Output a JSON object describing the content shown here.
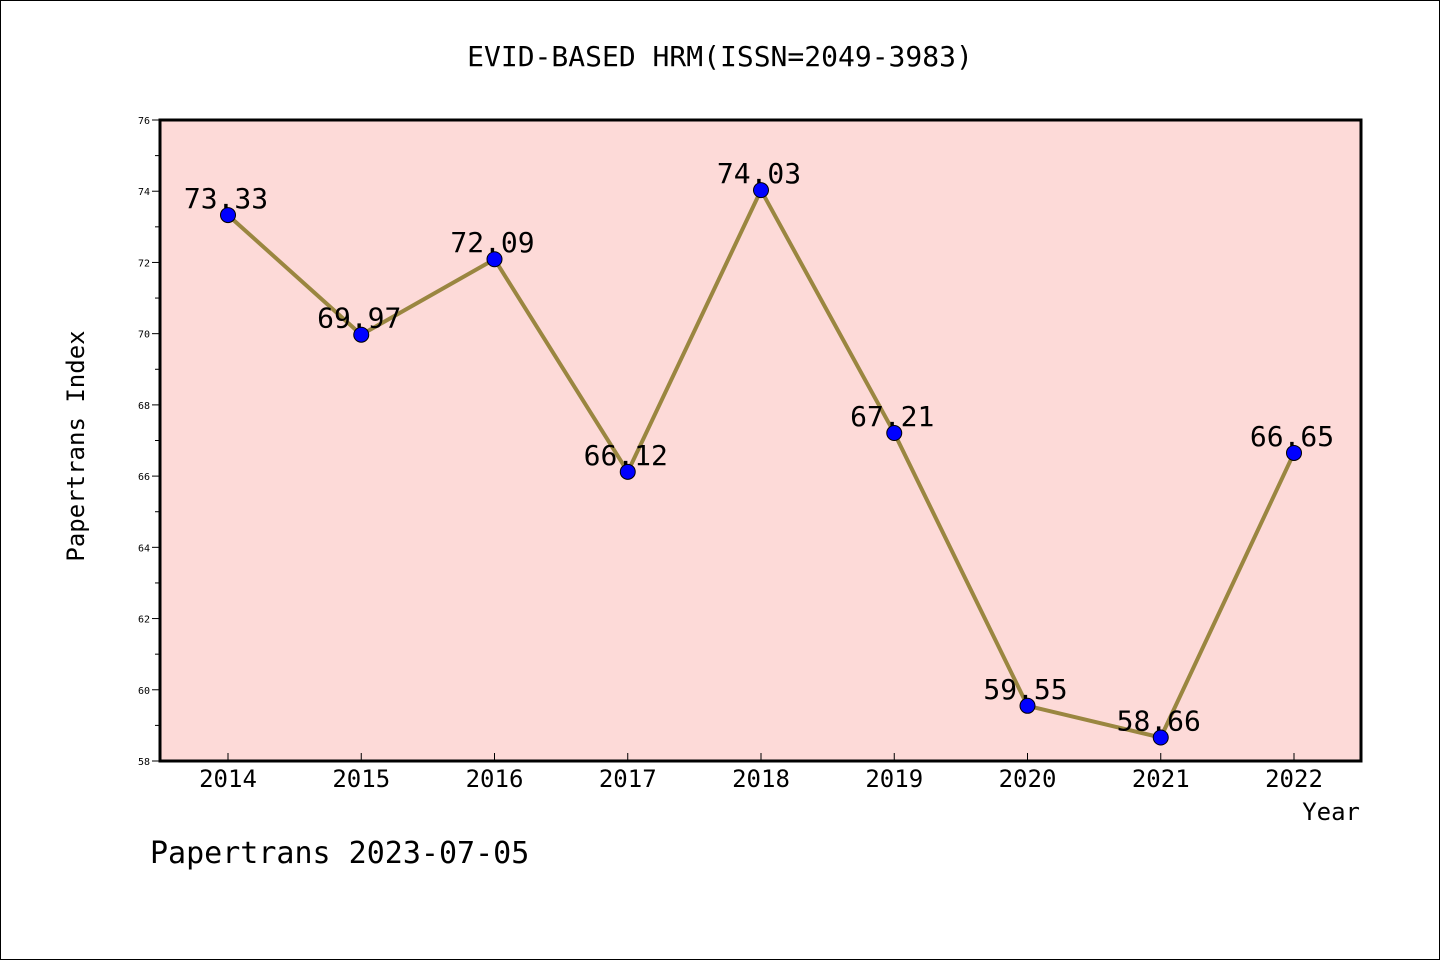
{
  "chart_data": {
    "type": "line",
    "title": "EVID-BASED HRM(ISSN=2049-3983)",
    "xlabel": "Year",
    "ylabel": "Papertrans Index",
    "categories": [
      "2014",
      "2015",
      "2016",
      "2017",
      "2018",
      "2019",
      "2020",
      "2021",
      "2022"
    ],
    "series": [
      {
        "values": [
          73.33,
          69.97,
          72.09,
          66.12,
          74.03,
          67.21,
          59.55,
          58.66,
          66.65
        ]
      }
    ],
    "data_labels": [
      "73.33",
      "69.97",
      "72.09",
      "66.12",
      "74.03",
      "67.21",
      "59.55",
      "58.66",
      "66.65"
    ],
    "ylim": [
      58,
      76
    ],
    "yticks": [
      "58",
      "60",
      "62",
      "64",
      "66",
      "68",
      "70",
      "72",
      "74",
      "76"
    ],
    "grid": false,
    "legend": "none",
    "colors": {
      "plot_background": "#fddad8",
      "line": "#9a8640",
      "marker": "#0000ff",
      "axis": "#000000"
    }
  },
  "footer": {
    "caption": "Papertrans 2023-07-05"
  }
}
